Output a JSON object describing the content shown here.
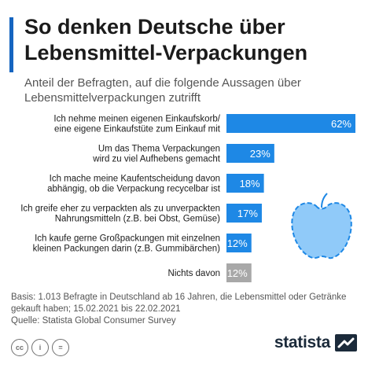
{
  "title": "So denken Deutsche über Lebensmittel-Verpackungen",
  "subtitle": "Anteil der Befragten, auf die folgende Aussagen über Lebensmittelverpackungen zutrifft",
  "chart_data": {
    "type": "bar",
    "orientation": "horizontal",
    "categories": [
      [
        "Ich nehme meinen eigenen Einkaufskorb/",
        "eine eigene Einkaufstüte zum Einkauf mit"
      ],
      [
        "Um das Thema Verpackungen",
        "wird zu viel Aufhebens gemacht"
      ],
      [
        "Ich mache meine Kaufentscheidung davon",
        "abhängig, ob die Verpackung recycelbar ist"
      ],
      [
        "Ich greife eher zu verpackten als zu unverpackten",
        "Nahrungsmitteln (z.B. bei Obst, Gemüse)"
      ],
      [
        "Ich kaufe gerne Großpackungen mit einzelnen",
        "kleinen Packungen darin (z.B. Gummibärchen)"
      ],
      [
        "Nichts davon"
      ]
    ],
    "values": [
      62,
      23,
      18,
      17,
      12,
      12
    ],
    "value_labels": [
      "62%",
      "23%",
      "18%",
      "17%",
      "12%",
      "12%"
    ],
    "bar_colors": [
      "#1e88e5",
      "#1e88e5",
      "#1e88e5",
      "#1e88e5",
      "#1e88e5",
      "#a8a8a8"
    ],
    "xlim": [
      0,
      62
    ]
  },
  "footer": {
    "basis": "Basis: 1.013 Befragte in Deutschland ab 16 Jahren, die Lebensmittel oder Getränke gekauft haben; 15.02.2021 bis 22.02.2021",
    "source": "Quelle: Statista Global Consumer Survey"
  },
  "license_icons": [
    "cc",
    "i",
    "="
  ],
  "brand": "statista",
  "colors": {
    "accent": "#1565c0",
    "bar": "#1e88e5",
    "bar_other": "#a8a8a8",
    "apple_fill": "#90caf9",
    "apple_stroke": "#1e88e5"
  }
}
